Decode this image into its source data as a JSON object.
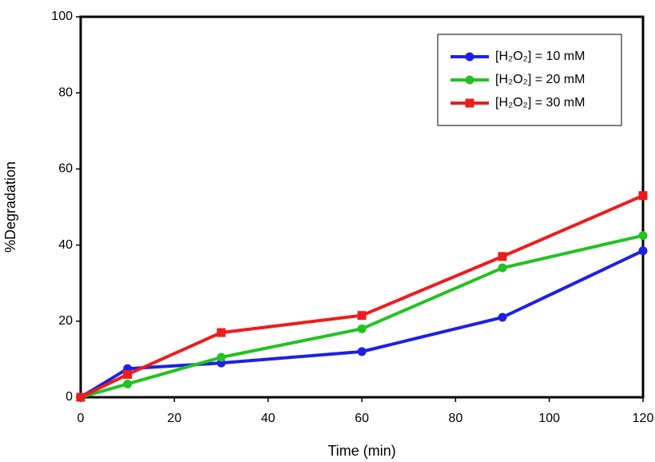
{
  "chart_data": {
    "type": "line",
    "xlabel": "Time (min)",
    "ylabel": "%Degradation",
    "x": [
      0,
      10,
      30,
      60,
      90,
      120
    ],
    "series": [
      {
        "name": "[H₂O₂] = 10 mM",
        "color": "#1f1fe6",
        "marker": "circle",
        "values": [
          0,
          7.5,
          9,
          12,
          21,
          38.5
        ]
      },
      {
        "name": "[H₂O₂] = 20 mM",
        "color": "#22c222",
        "marker": "circle",
        "values": [
          0,
          3.5,
          10.5,
          18,
          34,
          42.5
        ]
      },
      {
        "name": "[H₂O₂] = 30 mM",
        "color": "#ee1c1c",
        "marker": "square",
        "values": [
          0,
          6,
          17,
          21.5,
          37,
          53
        ]
      }
    ],
    "xlim": [
      0,
      120
    ],
    "xticks": [
      0,
      20,
      40,
      60,
      80,
      100,
      120
    ],
    "ylim": [
      0,
      100
    ],
    "yticks": [
      0,
      20,
      40,
      60,
      80,
      100
    ],
    "grid": false,
    "legend": "upper right"
  }
}
